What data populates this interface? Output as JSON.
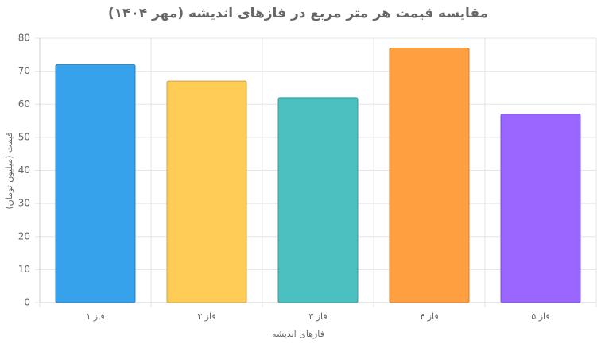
{
  "chart_data": {
    "type": "bar",
    "title": "مقایسه قیمت هر متر مربع در فازهای اندیشه (مهر ۱۴۰۴)",
    "x_label": "فازهای اندیشه",
    "y_label": "قیمت (میلیون تومان)",
    "categories": [
      "فاز ۱",
      "فاز ۲",
      "فاز ۳",
      "فاز ۴",
      "فاز ۵"
    ],
    "values": [
      72,
      67,
      62,
      77,
      57
    ],
    "colors": [
      "#36a2eb",
      "#ffcd56",
      "#4bc0c0",
      "#ff9f40",
      "#9966ff"
    ],
    "ylim": [
      0,
      80
    ],
    "yticks": [
      0,
      10,
      20,
      30,
      40,
      50,
      60,
      70,
      80
    ],
    "grid": true
  }
}
